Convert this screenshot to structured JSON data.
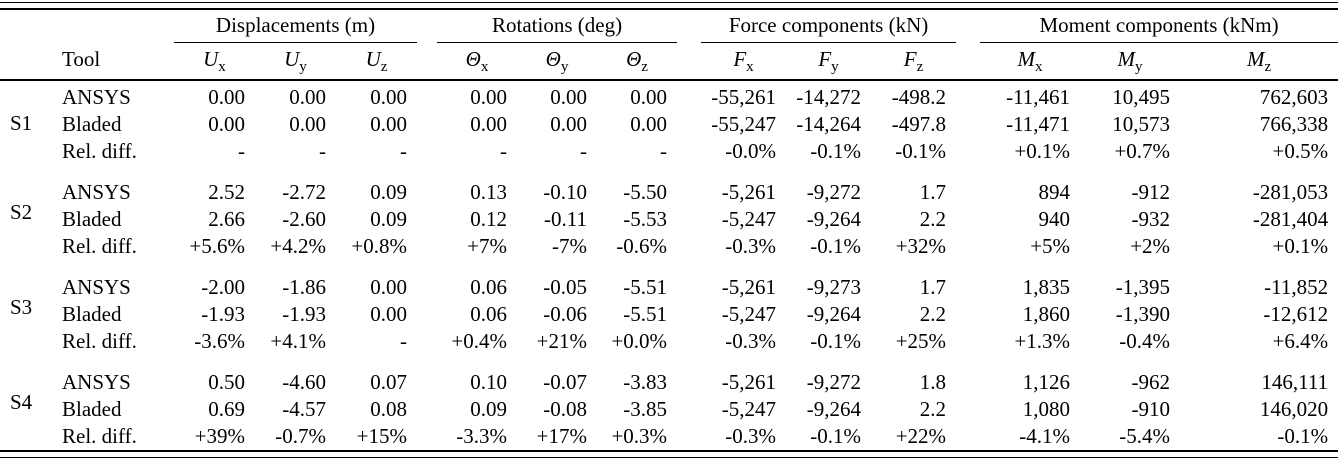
{
  "table": {
    "tool_header": "Tool",
    "col_groups": [
      {
        "label": "Displacements (m)",
        "cols": [
          {
            "base": "U",
            "sub": "x"
          },
          {
            "base": "U",
            "sub": "y"
          },
          {
            "base": "U",
            "sub": "z"
          }
        ]
      },
      {
        "label": "Rotations (deg)",
        "cols": [
          {
            "base": "Θ",
            "sub": "x"
          },
          {
            "base": "Θ",
            "sub": "y"
          },
          {
            "base": "Θ",
            "sub": "z"
          }
        ]
      },
      {
        "label": "Force components (kN)",
        "cols": [
          {
            "base": "F",
            "sub": "x"
          },
          {
            "base": "F",
            "sub": "y"
          },
          {
            "base": "F",
            "sub": "z"
          }
        ]
      },
      {
        "label": "Moment components (kNm)",
        "cols": [
          {
            "base": "M",
            "sub": "x"
          },
          {
            "base": "M",
            "sub": "y"
          },
          {
            "base": "M",
            "sub": "z"
          }
        ]
      }
    ],
    "row_groups": [
      {
        "id": "S1",
        "rows": [
          {
            "tool": "ANSYS",
            "values": [
              "0.00",
              "0.00",
              "0.00",
              "0.00",
              "0.00",
              "0.00",
              "-55,261",
              "-14,272",
              "-498.2",
              "-11,461",
              "10,495",
              "762,603"
            ]
          },
          {
            "tool": "Bladed",
            "values": [
              "0.00",
              "0.00",
              "0.00",
              "0.00",
              "0.00",
              "0.00",
              "-55,247",
              "-14,264",
              "-497.8",
              "-11,471",
              "10,573",
              "766,338"
            ]
          },
          {
            "tool": "Rel. diff.",
            "values": [
              "-",
              "-",
              "-",
              "-",
              "-",
              "-",
              "-0.0%",
              "-0.1%",
              "-0.1%",
              "+0.1%",
              "+0.7%",
              "+0.5%"
            ]
          }
        ]
      },
      {
        "id": "S2",
        "rows": [
          {
            "tool": "ANSYS",
            "values": [
              "2.52",
              "-2.72",
              "0.09",
              "0.13",
              "-0.10",
              "-5.50",
              "-5,261",
              "-9,272",
              "1.7",
              "894",
              "-912",
              "-281,053"
            ]
          },
          {
            "tool": "Bladed",
            "values": [
              "2.66",
              "-2.60",
              "0.09",
              "0.12",
              "-0.11",
              "-5.53",
              "-5,247",
              "-9,264",
              "2.2",
              "940",
              "-932",
              "-281,404"
            ]
          },
          {
            "tool": "Rel. diff.",
            "values": [
              "+5.6%",
              "+4.2%",
              "+0.8%",
              "+7%",
              "-7%",
              "-0.6%",
              "-0.3%",
              "-0.1%",
              "+32%",
              "+5%",
              "+2%",
              "+0.1%"
            ]
          }
        ]
      },
      {
        "id": "S3",
        "rows": [
          {
            "tool": "ANSYS",
            "values": [
              "-2.00",
              "-1.86",
              "0.00",
              "0.06",
              "-0.05",
              "-5.51",
              "-5,261",
              "-9,273",
              "1.7",
              "1,835",
              "-1,395",
              "-11,852"
            ]
          },
          {
            "tool": "Bladed",
            "values": [
              "-1.93",
              "-1.93",
              "0.00",
              "0.06",
              "-0.06",
              "-5.51",
              "-5,247",
              "-9,264",
              "2.2",
              "1,860",
              "-1,390",
              "-12,612"
            ]
          },
          {
            "tool": "Rel. diff.",
            "values": [
              "-3.6%",
              "+4.1%",
              "-",
              "+0.4%",
              "+21%",
              "+0.0%",
              "-0.3%",
              "-0.1%",
              "+25%",
              "+1.3%",
              "-0.4%",
              "+6.4%"
            ]
          }
        ]
      },
      {
        "id": "S4",
        "rows": [
          {
            "tool": "ANSYS",
            "values": [
              "0.50",
              "-4.60",
              "0.07",
              "0.10",
              "-0.07",
              "-3.83",
              "-5,261",
              "-9,272",
              "1.8",
              "1,126",
              "-962",
              "146,111"
            ]
          },
          {
            "tool": "Bladed",
            "values": [
              "0.69",
              "-4.57",
              "0.08",
              "0.09",
              "-0.08",
              "-3.85",
              "-5,247",
              "-9,264",
              "2.2",
              "1,080",
              "-910",
              "146,020"
            ]
          },
          {
            "tool": "Rel. diff.",
            "values": [
              "+39%",
              "-0.7%",
              "+15%",
              "-3.3%",
              "+17%",
              "+0.3%",
              "-0.3%",
              "-0.1%",
              "+22%",
              "-4.1%",
              "-5.4%",
              "-0.1%"
            ]
          }
        ]
      }
    ]
  }
}
